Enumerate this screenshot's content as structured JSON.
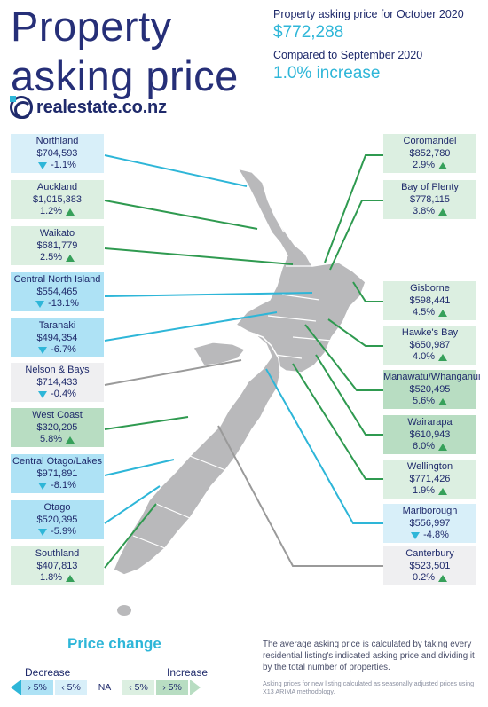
{
  "header": {
    "title": "Property asking price",
    "asking_label": "Property asking price for October 2020",
    "asking_value": "$772,288",
    "compare_label": "Compared to September 2020",
    "compare_value": "1.0% increase"
  },
  "brand": {
    "name": "realestate.co.nz",
    "color": "#1f2a6b",
    "accent": "#2eb6d8"
  },
  "regions_left": [
    {
      "name": "Northland",
      "price": "$704,593",
      "change": "-1.1%",
      "direction": "down",
      "category": "decrease"
    },
    {
      "name": "Auckland",
      "price": "$1,015,383",
      "change": "1.2%",
      "direction": "up",
      "category": "increase"
    },
    {
      "name": "Waikato",
      "price": "$681,779",
      "change": "2.5%",
      "direction": "up",
      "category": "increase"
    },
    {
      "name": "Central North Island",
      "price": "$554,465",
      "change": "-13.1%",
      "direction": "down",
      "category": "decrease-5"
    },
    {
      "name": "Taranaki",
      "price": "$494,354",
      "change": "-6.7%",
      "direction": "down",
      "category": "decrease-5"
    },
    {
      "name": "Nelson & Bays",
      "price": "$714,433",
      "change": "-0.4%",
      "direction": "down",
      "category": "na"
    },
    {
      "name": "West Coast",
      "price": "$320,205",
      "change": "5.8%",
      "direction": "up",
      "category": "increase-5"
    },
    {
      "name": "Central Otago/Lakes",
      "price": "$971,891",
      "change": "-8.1%",
      "direction": "down",
      "category": "decrease-5"
    },
    {
      "name": "Otago",
      "price": "$520,395",
      "change": "-5.9%",
      "direction": "down",
      "category": "decrease-5"
    },
    {
      "name": "Southland",
      "price": "$407,813",
      "change": "1.8%",
      "direction": "up",
      "category": "increase"
    }
  ],
  "regions_right": [
    {
      "name": "Coromandel",
      "price": "$852,780",
      "change": "2.9%",
      "direction": "up",
      "category": "increase"
    },
    {
      "name": "Bay of Plenty",
      "price": "$778,115",
      "change": "3.8%",
      "direction": "up",
      "category": "increase"
    },
    {
      "name": "Gisborne",
      "price": "$598,441",
      "change": "4.5%",
      "direction": "up",
      "category": "increase"
    },
    {
      "name": "Hawke's Bay",
      "price": "$650,987",
      "change": "4.0%",
      "direction": "up",
      "category": "increase"
    },
    {
      "name": "Manawatu/Whanganui",
      "price": "$520,495",
      "change": "5.6%",
      "direction": "up",
      "category": "increase-5"
    },
    {
      "name": "Wairarapa",
      "price": "$610,943",
      "change": "6.0%",
      "direction": "up",
      "category": "increase-5"
    },
    {
      "name": "Wellington",
      "price": "$771,426",
      "change": "1.9%",
      "direction": "up",
      "category": "increase"
    },
    {
      "name": "Marlborough",
      "price": "$556,997",
      "change": "-4.8%",
      "direction": "down",
      "category": "decrease"
    },
    {
      "name": "Canterbury",
      "price": "$523,501",
      "change": "0.2%",
      "direction": "up",
      "category": "na"
    }
  ],
  "legend": {
    "title": "Price change",
    "decrease_label": "Decrease",
    "increase_label": "Increase",
    "cells": [
      "› 5%",
      "‹ 5%",
      "NA",
      "‹ 5%",
      "› 5%"
    ]
  },
  "notes": {
    "main": "The average asking price is calculated by taking every residential listing's indicated asking price and dividing it by the total number of properties.",
    "method": "Asking prices for new listing calculated as seasonally adjusted prices using X13 ARIMA methodology."
  },
  "colors": {
    "decrease_line": "#2eb6d8",
    "increase_line": "#2f9a50",
    "neutral_line": "#9a9a9a",
    "map_fill": "#b9b9bb"
  }
}
